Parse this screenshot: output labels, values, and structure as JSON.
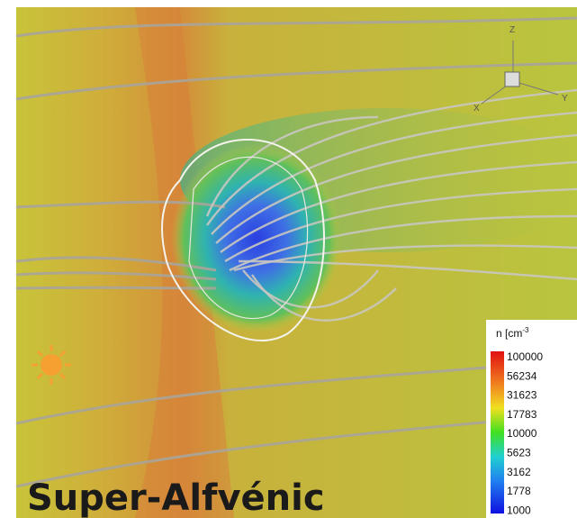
{
  "title": "Super-Alfvénic",
  "axes": {
    "z": "Z",
    "x": "X",
    "y": "Y"
  },
  "legend": {
    "title": "n [cm",
    "exponent": "-3",
    "labels": [
      100000,
      56234,
      31623,
      17783,
      10000,
      5623,
      3162,
      1778,
      1000
    ]
  }
}
